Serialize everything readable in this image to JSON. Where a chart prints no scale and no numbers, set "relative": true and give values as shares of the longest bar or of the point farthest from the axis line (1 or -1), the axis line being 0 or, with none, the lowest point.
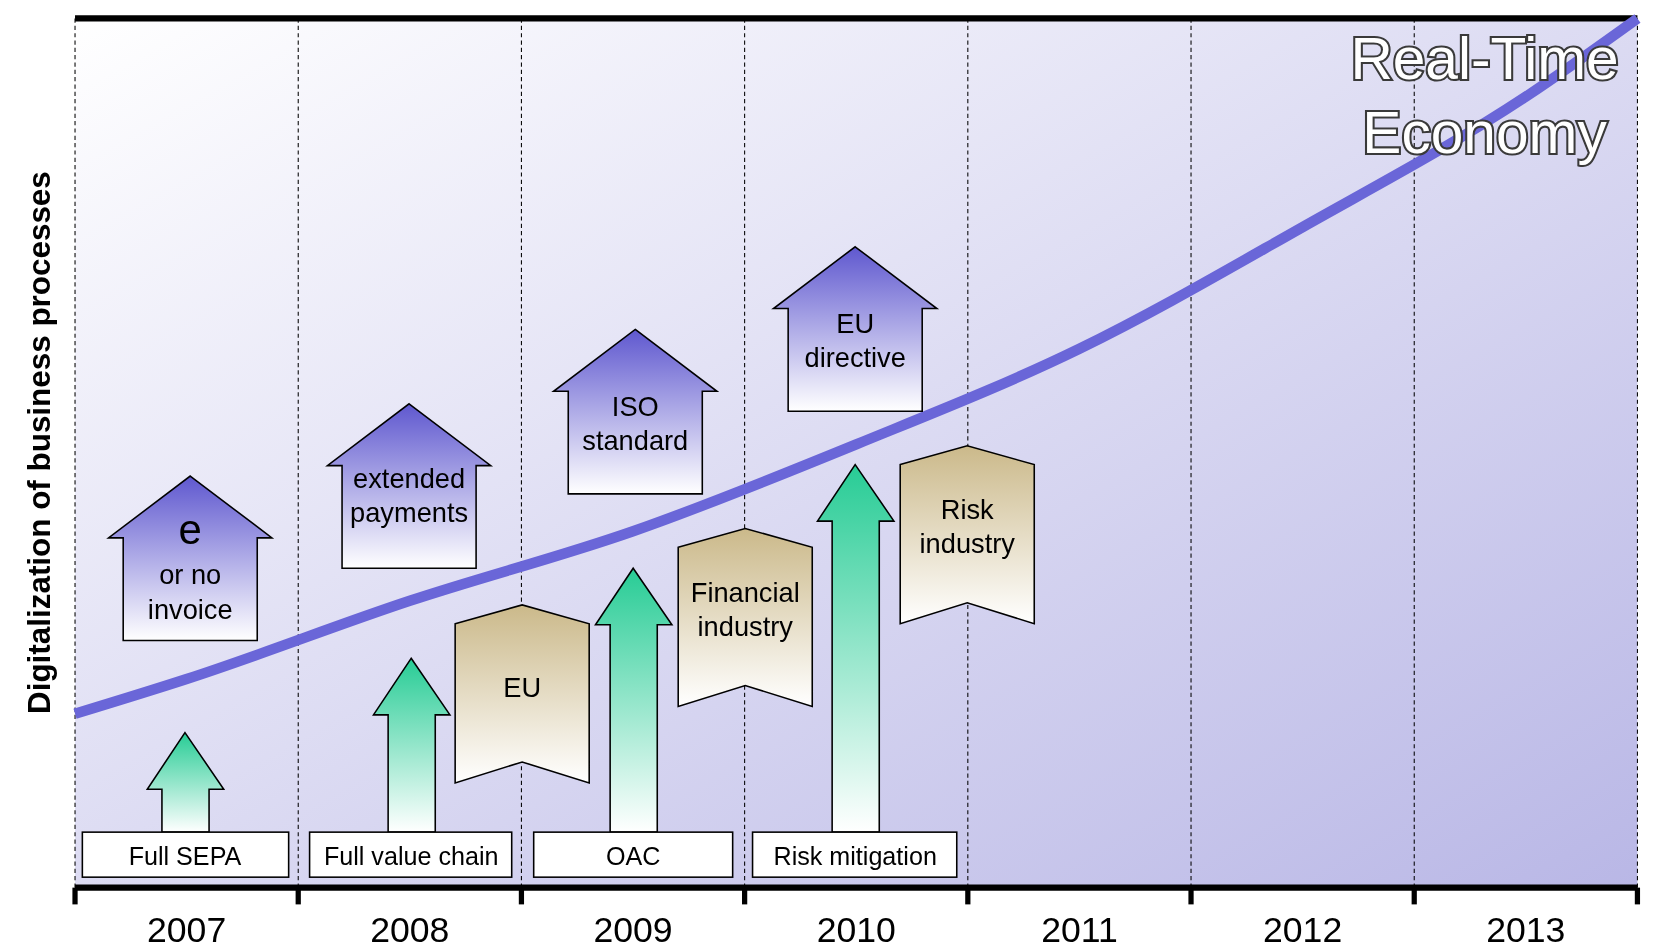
{
  "chart_data": {
    "type": "line",
    "relative": true,
    "ylabel": "Digitalization of business processes",
    "xlim": [
      2006.5,
      2013.5
    ],
    "xticks": [
      {
        "value": 2006.5,
        "label": null
      },
      {
        "value": 2007,
        "label": "2007"
      },
      {
        "value": 2007.5,
        "label": null
      },
      {
        "value": 2008,
        "label": "2008"
      },
      {
        "value": 2008.5,
        "label": null
      },
      {
        "value": 2009,
        "label": "2009"
      },
      {
        "value": 2009.5,
        "label": null
      },
      {
        "value": 2010,
        "label": "2010"
      },
      {
        "value": 2010.5,
        "label": null
      },
      {
        "value": 2011,
        "label": "2011"
      },
      {
        "value": 2011.5,
        "label": null
      },
      {
        "value": 2012,
        "label": "2012"
      },
      {
        "value": 2012.5,
        "label": null
      },
      {
        "value": 2013,
        "label": "2013"
      },
      {
        "value": 2013.5,
        "label": null
      }
    ],
    "grid": "x",
    "series": [
      {
        "name": "Real-Time Economy",
        "color": "#6a66d8",
        "x": [
          2006.5,
          2007,
          2008,
          2009,
          2010,
          2011,
          2012,
          2013,
          2013.5
        ],
        "values": [
          0.2,
          0.24,
          0.33,
          0.41,
          0.51,
          0.62,
          0.76,
          0.91,
          1
        ]
      }
    ],
    "annotations": [
      "e\nor no\ninvoice",
      "extended\npayments",
      "ISO\nstandard",
      "EU\ndirective",
      "EU",
      "Financial\nindustry",
      "Risk\nindustry",
      "Full SEPA",
      "Full value chain",
      "OAC",
      "Risk mitigation"
    ]
  }
}
